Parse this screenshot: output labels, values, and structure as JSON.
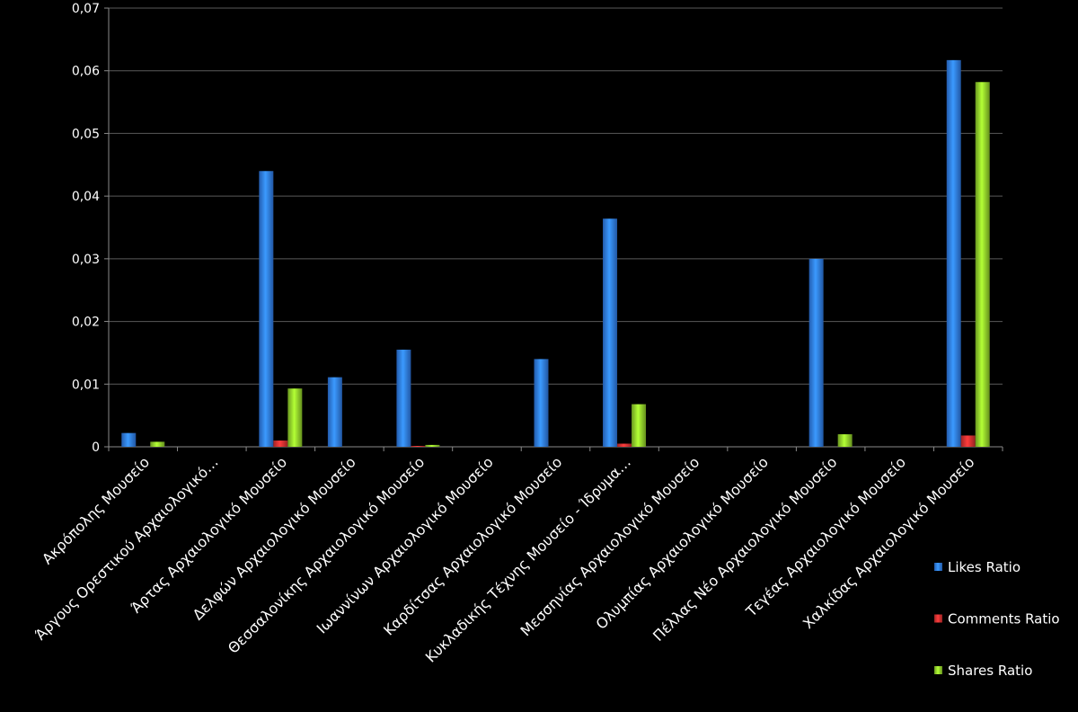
{
  "chart_data": {
    "type": "bar",
    "categories": [
      "Ακρόπολης Μουσείο",
      "Άργους Ορεστικού Αρχαιολογικό…",
      "Άρτας Αρχαιολογικό Μουσείο",
      "Δελφών Αρχαιολογικό Μουσείο",
      "Θεσσαλονίκης Αρχαιολογικό Μουσείο",
      "Ιωαννίνων Αρχαιολογικό Μουσείο",
      "Καρδίτσας Αρχαιολογικό Μουσείο",
      "Κυκλαδικής Τέχνης Μουσείο - Ίδρυμα…",
      "Μεσσηνίας Αρχαιολογικό Μουσείο",
      "Ολυμπίας Αρχαιολογικό Μουσείο",
      "Πέλλας Νέο Αρχαιολογικό Μουσείο",
      "Τεγέας Αρχαιολογικό Μουσείο",
      "Χαλκίδας Αρχαιολογικό Μουσείο"
    ],
    "series": [
      {
        "name": "Likes Ratio",
        "color": "#2f7be8",
        "values": [
          0.0022,
          0,
          0.044,
          0.0111,
          0.0155,
          0,
          0.014,
          0.0364,
          0,
          0,
          0.03,
          0,
          0.0617
        ]
      },
      {
        "name": "Comments Ratio",
        "color": "#d43030",
        "values": [
          0,
          0,
          0.001,
          0,
          0.0001,
          0,
          0,
          0.0005,
          0,
          0,
          0,
          0,
          0.0018
        ]
      },
      {
        "name": "Shares Ratio",
        "color": "#8fcc2a",
        "values": [
          0.0008,
          0,
          0.0093,
          0,
          0.0003,
          0,
          0,
          0.0068,
          0,
          0,
          0.002,
          0,
          0.0582
        ]
      }
    ],
    "yticks": [
      "0",
      "0,01",
      "0,02",
      "0,03",
      "0,04",
      "0,05",
      "0,06",
      "0,07"
    ],
    "ylim": [
      0,
      0.07
    ],
    "grid": true,
    "legend_position": "right",
    "background": "#000000"
  }
}
